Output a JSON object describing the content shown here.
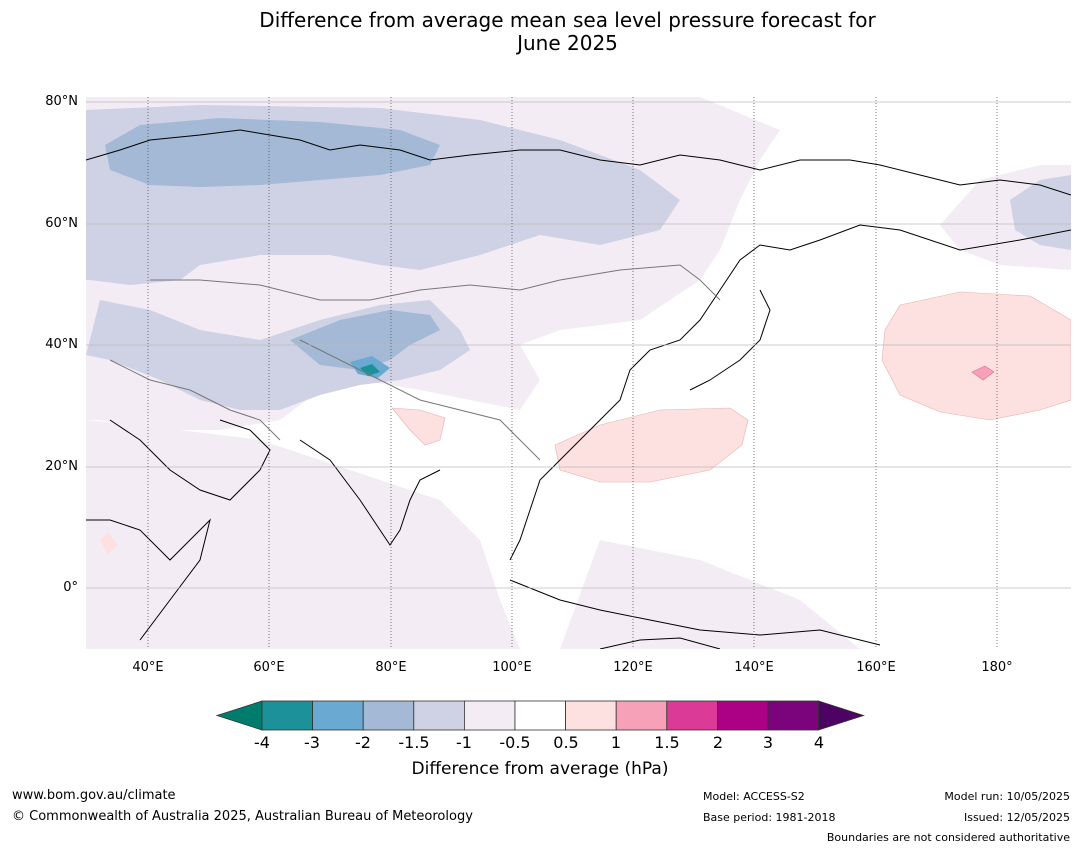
{
  "title_line1": "Difference from average mean sea level pressure forecast for",
  "title_line2": "June 2025",
  "map": {
    "lat_labels": [
      "80°N",
      "60°N",
      "40°N",
      "20°N",
      "0°"
    ],
    "lon_labels": [
      "40°E",
      "60°E",
      "80°E",
      "100°E",
      "120°E",
      "140°E",
      "160°E",
      "180°"
    ]
  },
  "colorbar": {
    "ticks": [
      "-4",
      "-3",
      "-2",
      "-1.5",
      "-1",
      "-0.5",
      "0.5",
      "1",
      "1.5",
      "2",
      "3",
      "4"
    ],
    "colors": [
      "#007c6d",
      "#1c9199",
      "#6aa9d1",
      "#a3b9d6",
      "#cfd1e4",
      "#f3ecf4",
      "#ffffff",
      "#fde0e0",
      "#f7a1b8",
      "#db3a96",
      "#ad0185",
      "#7b037c",
      "#4d0364"
    ],
    "label": "Difference from average (hPa)"
  },
  "footer": {
    "website": "www.bom.gov.au/climate",
    "copyright": "© Commonwealth of Australia 2025, Australian Bureau of Meteorology",
    "model": "Model: ACCESS-S2",
    "base_period": "Base period: 1981-2018",
    "model_run": "Model run: 10/05/2025",
    "issued": "Issued: 12/05/2025",
    "boundaries_note": "Boundaries are not considered authoritative"
  }
}
